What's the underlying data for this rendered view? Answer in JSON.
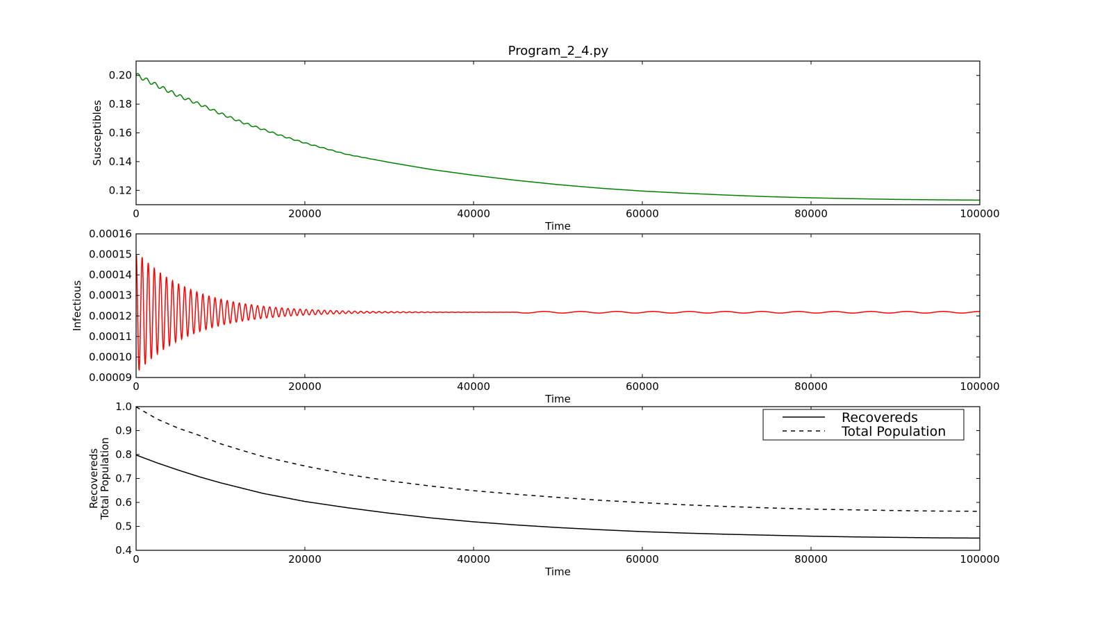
{
  "figure": {
    "title": "Program_2_4.py"
  },
  "chart_data": [
    {
      "type": "line",
      "xlabel": "Time",
      "ylabel": "Susceptibles",
      "xlim": [
        0,
        100000
      ],
      "ylim": [
        0.11,
        0.21
      ],
      "xticks": [
        "0",
        "20000",
        "40000",
        "60000",
        "80000",
        "100000"
      ],
      "yticks": [
        "0.12",
        "0.14",
        "0.16",
        "0.18",
        "0.20"
      ],
      "grid": false,
      "series": [
        {
          "color": "#008000",
          "style": "solid",
          "x": [
            0,
            2500,
            5000,
            7500,
            10000,
            12500,
            15000,
            17500,
            20000,
            25000,
            30000,
            35000,
            40000,
            45000,
            50000,
            55000,
            60000,
            65000,
            70000,
            75000,
            80000,
            85000,
            90000,
            95000,
            100000
          ],
          "y": [
            0.2005,
            0.193,
            0.186,
            0.18,
            0.1735,
            0.1675,
            0.1625,
            0.1575,
            0.153,
            0.145,
            0.1395,
            0.1345,
            0.1305,
            0.127,
            0.124,
            0.1215,
            0.1195,
            0.118,
            0.1167,
            0.1156,
            0.1148,
            0.1142,
            0.1137,
            0.1134,
            0.1132
          ],
          "oscillation": {
            "period": 1000,
            "amplitude": [
              0.0015,
              0.0009,
              0.0005,
              0.0002,
              0.0
            ],
            "amplitude_x": [
              0,
              8000,
              16000,
              24000,
              30000
            ]
          }
        }
      ]
    },
    {
      "type": "line",
      "xlabel": "Time",
      "ylabel": "Infectious",
      "xlim": [
        0,
        100000
      ],
      "ylim": [
        9e-05,
        0.00016
      ],
      "xticks": [
        "0",
        "20000",
        "40000",
        "60000",
        "80000",
        "100000"
      ],
      "yticks": [
        "0.00009",
        "0.00010",
        "0.00011",
        "0.00012",
        "0.00013",
        "0.00014",
        "0.00015",
        "0.00016"
      ],
      "grid": false,
      "series": [
        {
          "color": "#ff0000",
          "style": "solid",
          "equilibrium": 0.0001218,
          "damped_oscillation": {
            "period": 720,
            "initial_amplitude": 3e-05,
            "decay_time": 6500,
            "start_value": 0.0001495
          },
          "late_wobble": {
            "x_start": 45000,
            "amplitude": 4e-07
          }
        }
      ]
    },
    {
      "type": "line",
      "xlabel": "Time",
      "ylabel": [
        "Recovereds",
        "Total Population"
      ],
      "xlim": [
        0,
        100000
      ],
      "ylim": [
        0.4,
        1.0
      ],
      "xticks": [
        "0",
        "20000",
        "40000",
        "60000",
        "80000",
        "100000"
      ],
      "yticks": [
        "0.4",
        "0.5",
        "0.6",
        "0.7",
        "0.8",
        "0.9",
        "1.0"
      ],
      "grid": false,
      "legend": {
        "placement": "top-right"
      },
      "series": [
        {
          "name": "Recovereds",
          "color": "#000000",
          "style": "solid",
          "x": [
            0,
            2500,
            5000,
            7500,
            10000,
            12500,
            15000,
            20000,
            25000,
            30000,
            35000,
            40000,
            45000,
            50000,
            55000,
            60000,
            65000,
            70000,
            75000,
            80000,
            85000,
            90000,
            95000,
            100000
          ],
          "y": [
            0.798,
            0.765,
            0.735,
            0.707,
            0.682,
            0.66,
            0.638,
            0.604,
            0.578,
            0.555,
            0.535,
            0.519,
            0.506,
            0.495,
            0.486,
            0.478,
            0.472,
            0.467,
            0.463,
            0.459,
            0.456,
            0.454,
            0.452,
            0.451
          ]
        },
        {
          "name": "Total Population",
          "color": "#000000",
          "style": "dashed",
          "x": [
            0,
            2500,
            5000,
            7500,
            10000,
            12500,
            15000,
            20000,
            25000,
            30000,
            35000,
            40000,
            45000,
            50000,
            55000,
            60000,
            65000,
            70000,
            75000,
            80000,
            85000,
            90000,
            95000,
            100000
          ],
          "y": [
            0.999,
            0.948,
            0.91,
            0.88,
            0.845,
            0.818,
            0.792,
            0.752,
            0.717,
            0.69,
            0.668,
            0.649,
            0.634,
            0.621,
            0.609,
            0.599,
            0.59,
            0.583,
            0.577,
            0.572,
            0.569,
            0.566,
            0.564,
            0.563
          ]
        }
      ]
    }
  ]
}
